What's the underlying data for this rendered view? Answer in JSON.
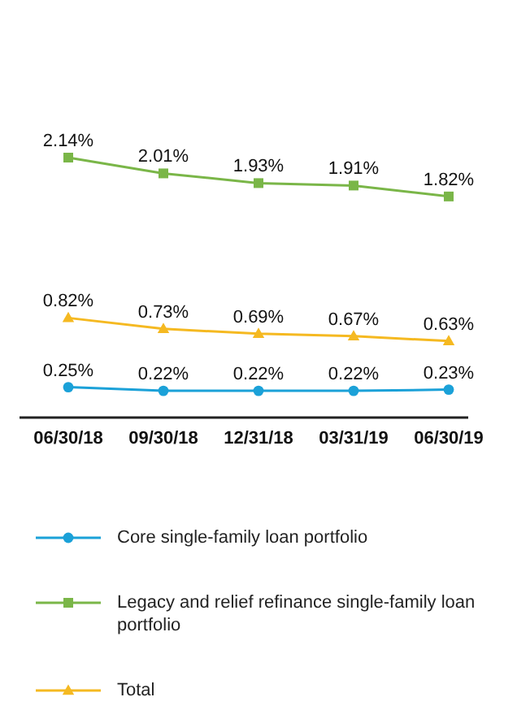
{
  "chart_data": {
    "type": "line",
    "categories": [
      "06/30/18",
      "09/30/18",
      "12/31/18",
      "03/31/19",
      "06/30/19"
    ],
    "series": [
      {
        "name": "Core single-family loan portfolio",
        "color": "#1ba1d8",
        "marker": "circle",
        "values": [
          0.25,
          0.22,
          0.22,
          0.22,
          0.23
        ],
        "value_labels": [
          "0.25%",
          "0.22%",
          "0.22%",
          "0.22%",
          "0.23%"
        ]
      },
      {
        "name": "Legacy and relief refinance single-family loan portfolio",
        "color": "#7ab648",
        "marker": "square",
        "values": [
          2.14,
          2.01,
          1.93,
          1.91,
          1.82
        ],
        "value_labels": [
          "2.14%",
          "2.01%",
          "1.93%",
          "1.91%",
          "1.82%"
        ]
      },
      {
        "name": "Total",
        "color": "#f5b921",
        "marker": "triangle",
        "values": [
          0.82,
          0.73,
          0.69,
          0.67,
          0.63
        ],
        "value_labels": [
          "0.82%",
          "0.73%",
          "0.69%",
          "0.67%",
          "0.63%"
        ]
      }
    ],
    "legend": "bottom",
    "grid": false
  }
}
